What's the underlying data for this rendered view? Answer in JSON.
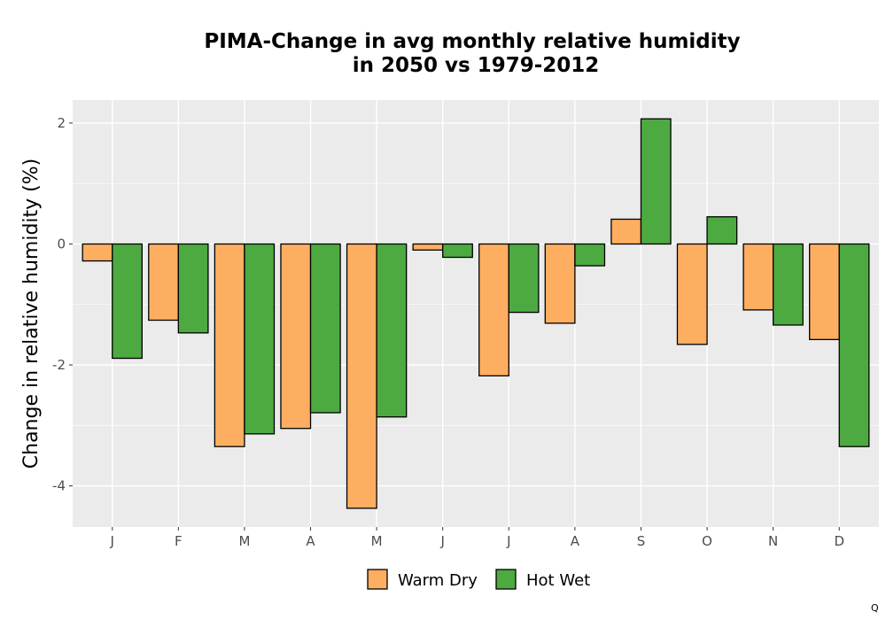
{
  "chart_data": {
    "type": "bar",
    "title": [
      "PIMA-Change in avg monthly relative humidity",
      "in 2050 vs 1979-2012"
    ],
    "xlabel": "",
    "ylabel": "Change in relative humidity (%)",
    "categories": [
      "J",
      "F",
      "M",
      "A",
      "M",
      "J",
      "J",
      "A",
      "S",
      "O",
      "N",
      "D"
    ],
    "series": [
      {
        "name": "Warm Dry",
        "color": "#FDAE61",
        "values": [
          -0.28,
          -1.26,
          -3.35,
          -3.05,
          -4.37,
          -0.1,
          -2.18,
          -1.31,
          0.41,
          -1.66,
          -1.09,
          -1.58
        ]
      },
      {
        "name": "Hot Wet",
        "color": "#4DAA41",
        "values": [
          -1.89,
          -1.47,
          -3.14,
          -2.79,
          -2.86,
          -0.22,
          -1.13,
          -0.36,
          2.07,
          0.45,
          -1.34,
          -3.35
        ]
      }
    ],
    "ylim": [
      -4.68,
      2.38
    ],
    "yticks": [
      -4,
      -2,
      0,
      2
    ],
    "ytick_labels": [
      "-4",
      "-2",
      "0",
      "2"
    ],
    "grid": true,
    "legend_position": "bottom",
    "corner_mark": "Q"
  }
}
